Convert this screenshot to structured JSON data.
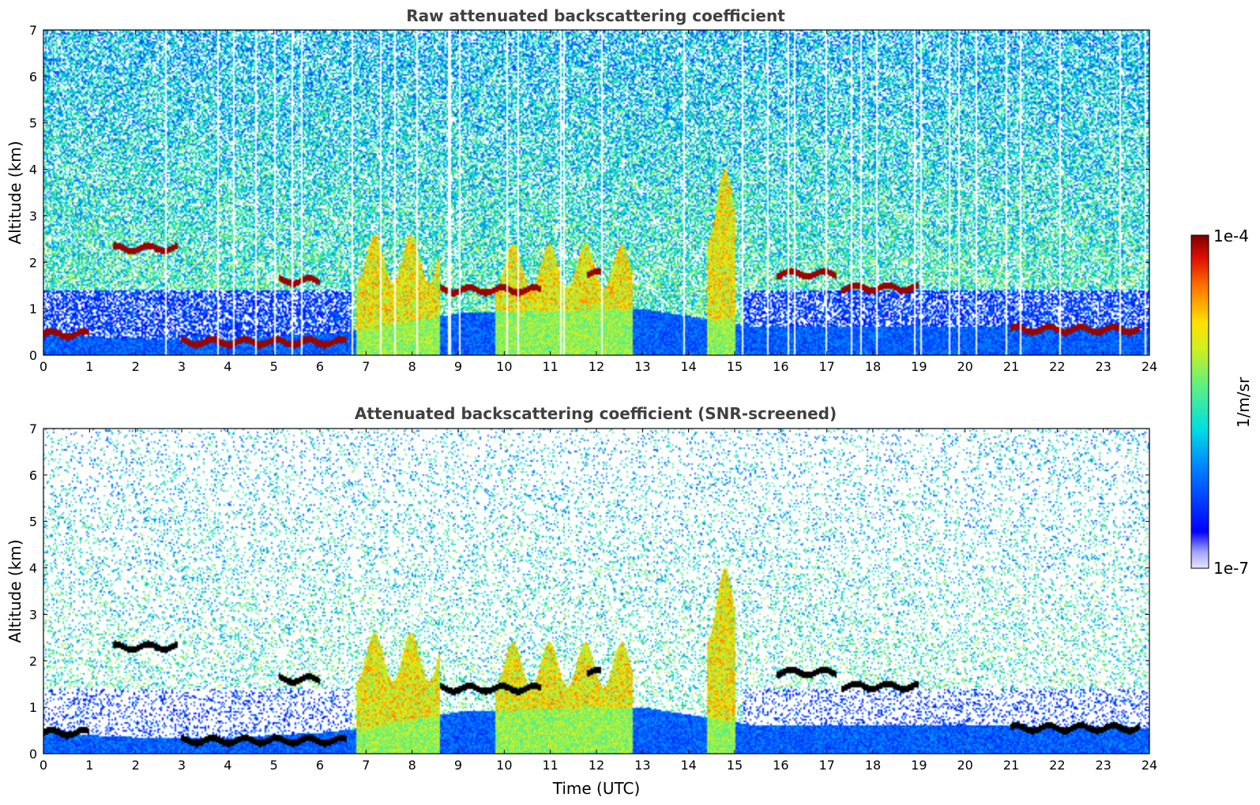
{
  "chart_data": [
    {
      "type": "heatmap",
      "title": "Raw attenuated backscattering coefficient",
      "xlabel": "",
      "ylabel": "Altitude (km)",
      "xlim": [
        0,
        24
      ],
      "ylim": [
        0,
        7
      ],
      "x_ticks": [
        "0",
        "1",
        "2",
        "3",
        "4",
        "5",
        "6",
        "7",
        "8",
        "9",
        "10",
        "11",
        "12",
        "13",
        "14",
        "15",
        "16",
        "17",
        "18",
        "19",
        "20",
        "21",
        "22",
        "23",
        "24"
      ],
      "y_ticks": [
        "0",
        "1",
        "2",
        "3",
        "4",
        "5",
        "6",
        "7"
      ],
      "screened": false,
      "boundary_layer_top_km": [
        {
          "t": 0,
          "h": 0.5
        },
        {
          "t": 1,
          "h": 0.4
        },
        {
          "t": 2,
          "h": 0.35
        },
        {
          "t": 4,
          "h": 0.35
        },
        {
          "t": 6,
          "h": 0.45
        },
        {
          "t": 7,
          "h": 0.55
        },
        {
          "t": 9,
          "h": 0.9
        },
        {
          "t": 13,
          "h": 1.0
        },
        {
          "t": 15.5,
          "h": 0.6
        },
        {
          "t": 19,
          "h": 0.6
        },
        {
          "t": 21,
          "h": 0.6
        },
        {
          "t": 23.8,
          "h": 0.55
        }
      ],
      "cloud_layers": [
        {
          "t0": 0.0,
          "t1": 1.0,
          "h": 0.45
        },
        {
          "t0": 1.5,
          "t1": 2.9,
          "h": 2.3
        },
        {
          "t0": 3.0,
          "t1": 6.6,
          "h": 0.28
        },
        {
          "t0": 5.1,
          "t1": 6.0,
          "h": 1.6
        },
        {
          "t0": 8.6,
          "t1": 10.8,
          "h": 1.4
        },
        {
          "t0": 11.8,
          "t1": 12.1,
          "h": 1.75
        },
        {
          "t0": 15.9,
          "t1": 17.2,
          "h": 1.75
        },
        {
          "t0": 17.3,
          "t1": 19.0,
          "h": 1.45
        },
        {
          "t0": 21.0,
          "t1": 23.8,
          "h": 0.55
        }
      ],
      "aerosol_plumes": [
        {
          "t0": 6.8,
          "t1": 8.6,
          "h": 2.6
        },
        {
          "t0": 9.8,
          "t1": 12.8,
          "h": 2.4
        },
        {
          "t0": 14.4,
          "t1": 15.0,
          "h": 4.0
        }
      ]
    },
    {
      "type": "heatmap",
      "title": "Attenuated backscattering coefficient (SNR-screened)",
      "xlabel": "Time (UTC)",
      "ylabel": "Altitude (km)",
      "xlim": [
        0,
        24
      ],
      "ylim": [
        0,
        7
      ],
      "x_ticks": [
        "0",
        "1",
        "2",
        "3",
        "4",
        "5",
        "6",
        "7",
        "8",
        "9",
        "10",
        "11",
        "12",
        "13",
        "14",
        "15",
        "16",
        "17",
        "18",
        "19",
        "20",
        "21",
        "22",
        "23",
        "24"
      ],
      "y_ticks": [
        "0",
        "1",
        "2",
        "3",
        "4",
        "5",
        "6",
        "7"
      ],
      "screened": true
    }
  ],
  "colorbar": {
    "label": "1/m/sr",
    "max_label": "1e-4",
    "min_label": "1e-7",
    "scale": "log",
    "colormap": "jet",
    "max": 0.0001,
    "min": 1e-07
  }
}
